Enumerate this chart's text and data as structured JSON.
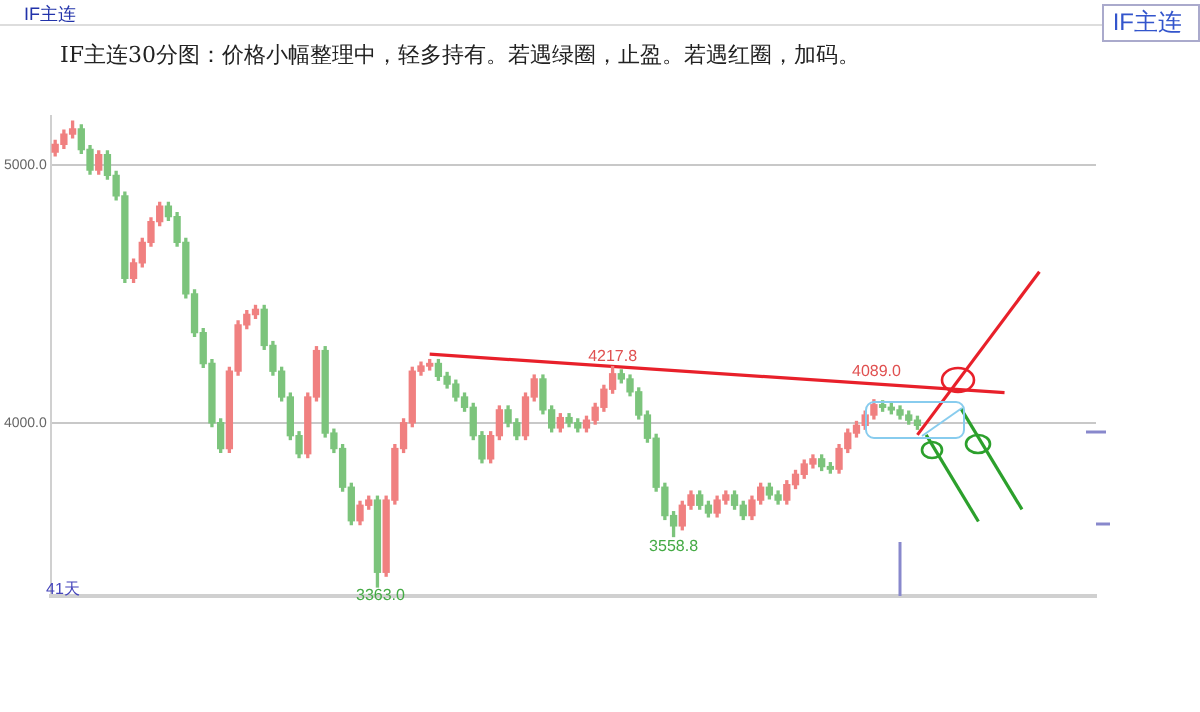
{
  "chart_data": {
    "type": "candlestick",
    "title": "IF主连30分图：价格小幅整理中，轻多持有。若遇绿圈，止盈。若遇红圈，加码。",
    "categories": [
      null,
      null,
      null,
      null,
      null,
      null,
      null,
      null,
      null,
      null,
      null,
      null,
      null,
      null,
      null,
      null,
      null,
      null,
      null,
      null,
      null,
      null,
      null,
      null,
      null,
      null,
      null,
      null,
      null,
      null,
      null,
      null,
      null,
      null,
      null,
      null,
      null,
      null,
      null,
      null,
      null,
      null,
      null,
      null,
      null,
      null,
      null,
      null,
      null,
      null,
      null,
      null,
      null,
      null,
      null,
      null,
      null,
      null,
      null,
      null,
      null,
      null,
      null,
      null,
      null,
      null,
      null,
      null,
      null,
      null,
      null,
      null,
      null,
      null,
      null,
      null,
      null,
      null,
      null,
      null,
      null,
      null,
      null,
      null,
      null,
      null,
      null,
      null,
      null,
      null,
      null,
      null,
      null,
      null,
      null,
      null,
      null,
      null,
      null,
      null,
      null,
      null,
      null,
      null,
      null,
      null,
      null,
      null,
      null,
      null,
      null,
      null,
      null,
      null,
      null,
      null,
      null,
      null,
      null,
      null
    ],
    "ohlc": [
      [
        5050,
        5095,
        5035,
        5080
      ],
      [
        5080,
        5135,
        5065,
        5120
      ],
      [
        5120,
        5170,
        5105,
        5140
      ],
      [
        5140,
        5155,
        5045,
        5060
      ],
      [
        5060,
        5075,
        4965,
        4980
      ],
      [
        4980,
        5055,
        4965,
        5040
      ],
      [
        5040,
        5055,
        4945,
        4960
      ],
      [
        4960,
        4975,
        4865,
        4880
      ],
      [
        4880,
        4895,
        4545,
        4560
      ],
      [
        4560,
        4635,
        4545,
        4620
      ],
      [
        4620,
        4715,
        4605,
        4700
      ],
      [
        4700,
        4795,
        4685,
        4780
      ],
      [
        4780,
        4855,
        4765,
        4840
      ],
      [
        4840,
        4855,
        4785,
        4800
      ],
      [
        4800,
        4815,
        4685,
        4700
      ],
      [
        4700,
        4715,
        4485,
        4500
      ],
      [
        4500,
        4515,
        4335,
        4350
      ],
      [
        4350,
        4365,
        4215,
        4230
      ],
      [
        4230,
        4245,
        3985,
        4000
      ],
      [
        4000,
        4015,
        3885,
        3900
      ],
      [
        3900,
        4215,
        3885,
        4200
      ],
      [
        4200,
        4395,
        4185,
        4380
      ],
      [
        4380,
        4435,
        4365,
        4420
      ],
      [
        4420,
        4455,
        4405,
        4440
      ],
      [
        4440,
        4455,
        4285,
        4300
      ],
      [
        4300,
        4315,
        4185,
        4200
      ],
      [
        4200,
        4215,
        4085,
        4100
      ],
      [
        4100,
        4115,
        3935,
        3950
      ],
      [
        3950,
        3965,
        3865,
        3880
      ],
      [
        3880,
        4115,
        3865,
        4100
      ],
      [
        4100,
        4295,
        4085,
        4280
      ],
      [
        4280,
        4295,
        3945,
        3960
      ],
      [
        3960,
        3975,
        3885,
        3900
      ],
      [
        3900,
        3915,
        3735,
        3750
      ],
      [
        3750,
        3765,
        3605,
        3620
      ],
      [
        3620,
        3695,
        3605,
        3680
      ],
      [
        3680,
        3715,
        3665,
        3700
      ],
      [
        3700,
        3715,
        3363.0,
        3420
      ],
      [
        3420,
        3715,
        3405,
        3700
      ],
      [
        3700,
        3915,
        3685,
        3900
      ],
      [
        3900,
        4015,
        3885,
        4000
      ],
      [
        4000,
        4215,
        3985,
        4200
      ],
      [
        4200,
        4235,
        4185,
        4220
      ],
      [
        4220,
        4245,
        4205,
        4230
      ],
      [
        4230,
        4245,
        4165,
        4180
      ],
      [
        4180,
        4195,
        4135,
        4150
      ],
      [
        4150,
        4165,
        4085,
        4100
      ],
      [
        4100,
        4115,
        4045,
        4060
      ],
      [
        4060,
        4075,
        3935,
        3950
      ],
      [
        3950,
        3965,
        3845,
        3860
      ],
      [
        3860,
        3965,
        3845,
        3950
      ],
      [
        3950,
        4065,
        3935,
        4050
      ],
      [
        4050,
        4065,
        3985,
        4000
      ],
      [
        4000,
        4015,
        3935,
        3950
      ],
      [
        3950,
        4115,
        3935,
        4100
      ],
      [
        4100,
        4185,
        4085,
        4170
      ],
      [
        4170,
        4185,
        4035,
        4050
      ],
      [
        4050,
        4065,
        3965,
        3980
      ],
      [
        3980,
        4035,
        3965,
        4020
      ],
      [
        4020,
        4035,
        3985,
        4000
      ],
      [
        4000,
        4015,
        3965,
        3980
      ],
      [
        3980,
        4025,
        3965,
        4010
      ],
      [
        4010,
        4075,
        3995,
        4060
      ],
      [
        4060,
        4145,
        4045,
        4130
      ],
      [
        4130,
        4217.8,
        4115,
        4190
      ],
      [
        4190,
        4205,
        4155,
        4170
      ],
      [
        4170,
        4185,
        4105,
        4120
      ],
      [
        4120,
        4135,
        4015,
        4030
      ],
      [
        4030,
        4045,
        3925,
        3940
      ],
      [
        3940,
        3955,
        3735,
        3750
      ],
      [
        3750,
        3765,
        3625,
        3640
      ],
      [
        3640,
        3655,
        3558.8,
        3600
      ],
      [
        3600,
        3695,
        3585,
        3680
      ],
      [
        3680,
        3735,
        3665,
        3720
      ],
      [
        3720,
        3735,
        3665,
        3680
      ],
      [
        3680,
        3695,
        3635,
        3650
      ],
      [
        3650,
        3715,
        3635,
        3700
      ],
      [
        3700,
        3735,
        3685,
        3720
      ],
      [
        3720,
        3735,
        3665,
        3680
      ],
      [
        3680,
        3695,
        3625,
        3640
      ],
      [
        3640,
        3715,
        3625,
        3700
      ],
      [
        3700,
        3765,
        3685,
        3750
      ],
      [
        3750,
        3765,
        3705,
        3720
      ],
      [
        3720,
        3735,
        3685,
        3700
      ],
      [
        3700,
        3775,
        3685,
        3760
      ],
      [
        3760,
        3815,
        3745,
        3800
      ],
      [
        3800,
        3855,
        3785,
        3840
      ],
      [
        3840,
        3875,
        3825,
        3860
      ],
      [
        3860,
        3875,
        3815,
        3830
      ],
      [
        3830,
        3845,
        3805,
        3820
      ],
      [
        3820,
        3915,
        3805,
        3900
      ],
      [
        3900,
        3975,
        3885,
        3960
      ],
      [
        3960,
        4005,
        3945,
        3990
      ],
      [
        3990,
        4045,
        3975,
        4030
      ],
      [
        4030,
        4089.0,
        4015,
        4070
      ],
      [
        4070,
        4085,
        4045,
        4060
      ],
      [
        4060,
        4075,
        4035,
        4050
      ],
      [
        4050,
        4065,
        4015,
        4030
      ],
      [
        4030,
        4045,
        3995,
        4010
      ],
      [
        4010,
        4025,
        3975,
        3990
      ],
      null,
      null,
      null,
      null,
      null,
      null,
      null,
      null,
      null,
      null,
      null,
      null,
      null,
      null,
      null,
      null,
      null,
      null,
      null,
      null
    ],
    "colors": [
      "#f08080",
      "#f08080",
      "#f08080",
      "#7cc47c",
      "#7cc47c",
      "#f08080",
      "#7cc47c",
      "#7cc47c",
      "#7cc47c",
      "#f08080",
      "#f08080",
      "#f08080",
      "#f08080",
      "#7cc47c",
      "#7cc47c",
      "#7cc47c",
      "#7cc47c",
      "#7cc47c",
      "#7cc47c",
      "#7cc47c",
      "#f08080",
      "#f08080",
      "#f08080",
      "#f08080",
      "#7cc47c",
      "#7cc47c",
      "#7cc47c",
      "#7cc47c",
      "#7cc47c",
      "#f08080",
      "#f08080",
      "#7cc47c",
      "#7cc47c",
      "#7cc47c",
      "#7cc47c",
      "#f08080",
      "#f08080",
      "#7cc47c",
      "#f08080",
      "#f08080",
      "#f08080",
      "#f08080",
      "#f08080",
      "#f08080",
      "#7cc47c",
      "#7cc47c",
      "#7cc47c",
      "#7cc47c",
      "#7cc47c",
      "#7cc47c",
      "#f08080",
      "#f08080",
      "#7cc47c",
      "#7cc47c",
      "#f08080",
      "#f08080",
      "#7cc47c",
      "#7cc47c",
      "#f08080",
      "#7cc47c",
      "#7cc47c",
      "#f08080",
      "#f08080",
      "#f08080",
      "#f08080",
      "#7cc47c",
      "#7cc47c",
      "#7cc47c",
      "#7cc47c",
      "#7cc47c",
      "#7cc47c",
      "#7cc47c",
      "#f08080",
      "#f08080",
      "#7cc47c",
      "#7cc47c",
      "#f08080",
      "#f08080",
      "#7cc47c",
      "#7cc47c",
      "#f08080",
      "#f08080",
      "#7cc47c",
      "#7cc47c",
      "#f08080",
      "#f08080",
      "#f08080",
      "#f08080",
      "#7cc47c",
      "#7cc47c",
      "#f08080",
      "#f08080",
      "#f08080",
      "#f08080",
      "#f08080",
      "#7cc47c",
      "#7cc47c",
      "#7cc47c",
      "#7cc47c",
      "#7cc47c",
      null,
      null,
      null,
      null,
      null,
      null,
      null,
      null,
      null,
      null,
      null,
      null,
      null,
      null,
      null,
      null,
      null,
      null,
      null,
      null
    ],
    "series": [
      {
        "type": "line",
        "color": "#e8202a",
        "values": [
          null,
          null,
          null,
          null,
          null,
          null,
          null,
          null,
          null,
          null,
          null,
          null,
          null,
          null,
          null,
          null,
          null,
          null,
          null,
          null,
          null,
          null,
          null,
          null,
          null,
          null,
          null,
          null,
          null,
          null,
          null,
          null,
          null,
          null,
          null,
          null,
          null,
          null,
          null,
          null,
          null,
          null,
          null,
          4266,
          null,
          null,
          null,
          null,
          null,
          null,
          null,
          null,
          null,
          null,
          null,
          null,
          null,
          null,
          null,
          null,
          null,
          null,
          null,
          null,
          null,
          null,
          null,
          null,
          null,
          null,
          null,
          null,
          null,
          null,
          null,
          null,
          null,
          null,
          null,
          null,
          null,
          null,
          null,
          null,
          null,
          null,
          null,
          null,
          null,
          null,
          null,
          null,
          null,
          null,
          null,
          null,
          null,
          null,
          null,
          null,
          null,
          null,
          null,
          null,
          null,
          null,
          null,
          null,
          null,
          4117,
          null,
          null,
          null,
          null,
          null,
          null,
          null,
          null,
          null,
          null
        ]
      },
      {
        "type": "line",
        "color": "#e8202a",
        "values": [
          null,
          null,
          null,
          null,
          null,
          null,
          null,
          null,
          null,
          null,
          null,
          null,
          null,
          null,
          null,
          null,
          null,
          null,
          null,
          null,
          null,
          null,
          null,
          null,
          null,
          null,
          null,
          null,
          null,
          null,
          null,
          null,
          null,
          null,
          null,
          null,
          null,
          null,
          null,
          null,
          null,
          null,
          null,
          null,
          null,
          null,
          null,
          null,
          null,
          null,
          null,
          null,
          null,
          null,
          null,
          null,
          null,
          null,
          null,
          null,
          null,
          null,
          null,
          null,
          null,
          null,
          null,
          null,
          null,
          null,
          null,
          null,
          null,
          null,
          null,
          null,
          null,
          null,
          null,
          null,
          null,
          null,
          null,
          null,
          null,
          null,
          null,
          null,
          null,
          null,
          null,
          null,
          null,
          null,
          null,
          null,
          null,
          null,
          null,
          3953,
          null,
          null,
          null,
          null,
          null,
          null,
          null,
          null,
          null,
          null,
          null,
          null,
          null,
          4586,
          null,
          null,
          null,
          null,
          null,
          null
        ]
      },
      {
        "type": "line",
        "color": "#2ca02c",
        "values": [
          null,
          null,
          null,
          null,
          null,
          null,
          null,
          null,
          null,
          null,
          null,
          null,
          null,
          null,
          null,
          null,
          null,
          null,
          null,
          null,
          null,
          null,
          null,
          null,
          null,
          null,
          null,
          null,
          null,
          null,
          null,
          null,
          null,
          null,
          null,
          null,
          null,
          null,
          null,
          null,
          null,
          null,
          null,
          null,
          null,
          null,
          null,
          null,
          null,
          null,
          null,
          null,
          null,
          null,
          null,
          null,
          null,
          null,
          null,
          null,
          null,
          null,
          null,
          null,
          null,
          null,
          null,
          null,
          null,
          null,
          null,
          null,
          null,
          null,
          null,
          null,
          null,
          null,
          null,
          null,
          null,
          null,
          null,
          null,
          null,
          null,
          null,
          null,
          null,
          null,
          null,
          null,
          null,
          null,
          null,
          null,
          null,
          null,
          null,
          null,
          3953,
          null,
          null,
          null,
          null,
          null,
          3617,
          null,
          null,
          null,
          null,
          null,
          null,
          null,
          null,
          null,
          null,
          null,
          null,
          null
        ]
      },
      {
        "type": "line",
        "color": "#2ca02c",
        "values": [
          null,
          null,
          null,
          null,
          null,
          null,
          null,
          null,
          null,
          null,
          null,
          null,
          null,
          null,
          null,
          null,
          null,
          null,
          null,
          null,
          null,
          null,
          null,
          null,
          null,
          null,
          null,
          null,
          null,
          null,
          null,
          null,
          null,
          null,
          null,
          null,
          null,
          null,
          null,
          null,
          null,
          null,
          null,
          null,
          null,
          null,
          null,
          null,
          null,
          null,
          null,
          null,
          null,
          null,
          null,
          null,
          null,
          null,
          null,
          null,
          null,
          null,
          null,
          null,
          null,
          null,
          null,
          null,
          null,
          null,
          null,
          null,
          null,
          null,
          null,
          null,
          null,
          null,
          null,
          null,
          null,
          null,
          null,
          null,
          null,
          null,
          null,
          null,
          null,
          null,
          null,
          null,
          null,
          null,
          null,
          null,
          null,
          null,
          null,
          null,
          null,
          null,
          null,
          null,
          4055,
          null,
          null,
          null,
          null,
          null,
          null,
          3664,
          null,
          null,
          null,
          null,
          null,
          null,
          null,
          null
        ]
      }
    ],
    "ylim": [
      3328,
      5190
    ],
    "yticks": [
      {
        "value": 4000,
        "label": "4000.0"
      },
      {
        "value": 5000,
        "label": "5000.0"
      }
    ],
    "grid": "y",
    "tick_labels": "y",
    "marker": "none",
    "line_style": "solid",
    "annotations": [
      "IF主连",
      "IF主连",
      "41天",
      "3363.0",
      "4089.0",
      {
        "text": "3558.8",
        "y": 3558.8
      },
      {
        "text": "4217.8",
        "y": 4217.8
      }
    ]
  }
}
